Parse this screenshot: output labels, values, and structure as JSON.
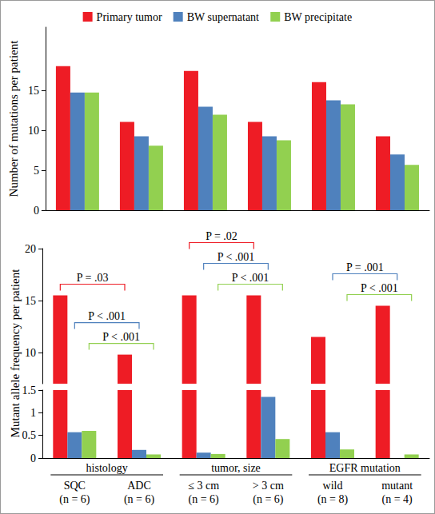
{
  "chart_data": [
    {
      "type": "bar",
      "ylabel": "Number of mutations per patient",
      "categories": [
        "SQC\n(n = 6)",
        "ADC\n(n = 6)",
        "≤ 3 cm\n(n = 6)",
        "> 3 cm\n(n = 6)",
        "wild\n(n = 8)",
        "mutant\n(n = 4)"
      ],
      "series": [
        {
          "name": "Primary tumor",
          "color": "#ee1c25",
          "values": [
            18.1,
            11.1,
            17.5,
            11.1,
            16.1,
            9.3
          ]
        },
        {
          "name": "BW supernatant",
          "color": "#4f81bd",
          "values": [
            14.8,
            9.3,
            13,
            9.3,
            13.8,
            7
          ]
        },
        {
          "name": "BW precipitate",
          "color": "#92d050",
          "values": [
            14.8,
            8.1,
            12,
            8.8,
            13.3,
            5.7
          ]
        }
      ],
      "ylim": [
        0,
        23
      ],
      "yticks": [
        0,
        5,
        10,
        15
      ],
      "grid": false,
      "legend": "top",
      "tick_labels": "y"
    },
    {
      "type": "bar",
      "ylabel": "Mutant allele frequency per patient",
      "categories": [
        "SQC\n(n = 6)",
        "ADC\n(n = 6)",
        "≤ 3 cm\n(n = 6)",
        "> 3 cm\n(n = 6)",
        "wild\n(n = 8)",
        "mutant\n(n = 4)"
      ],
      "groups": [
        {
          "label": "histology",
          "categories": [
            "SQC\n(n = 6)",
            "ADC\n(n = 6)"
          ]
        },
        {
          "label": "tumor, size",
          "categories": [
            "≤ 3 cm\n(n = 6)",
            "> 3 cm\n(n = 6)"
          ]
        },
        {
          "label": "EGFR mutation",
          "categories": [
            "wild\n(n = 8)",
            "mutant\n(n = 4)"
          ]
        }
      ],
      "series": [
        {
          "name": "Primary tumor",
          "color": "#ee1c25",
          "values": [
            15.5,
            9.8,
            15.5,
            15.5,
            11.5,
            14.5
          ]
        },
        {
          "name": "BW supernatant",
          "color": "#4f81bd",
          "values": [
            0.57,
            0.18,
            0.12,
            1.35,
            0.57,
            0
          ]
        },
        {
          "name": "BW precipitate",
          "color": "#92d050",
          "values": [
            0.6,
            0.08,
            0.09,
            0.42,
            0.19,
            0.08
          ]
        }
      ],
      "ylim": [
        0,
        20
      ],
      "yticks": [
        0,
        0.5,
        1,
        1.5,
        10,
        15,
        20
      ],
      "axis_break": [
        1.5,
        7
      ],
      "annotations": [
        {
          "text": "P = .03",
          "series": "Primary tumor",
          "from": "SQC\n(n = 6)",
          "to": "ADC\n(n = 6)"
        },
        {
          "text": "P < .001",
          "series": "BW supernatant",
          "from": "SQC\n(n = 6)",
          "to": "ADC\n(n = 6)"
        },
        {
          "text": "P < .001",
          "series": "BW precipitate",
          "from": "SQC\n(n = 6)",
          "to": "ADC\n(n = 6)"
        },
        {
          "text": "P = .02",
          "series": "Primary tumor",
          "from": "≤ 3 cm\n(n = 6)",
          "to": "> 3 cm\n(n = 6)"
        },
        {
          "text": "P < .001",
          "series": "BW supernatant",
          "from": "≤ 3 cm\n(n = 6)",
          "to": "> 3 cm\n(n = 6)"
        },
        {
          "text": "P < .001",
          "series": "BW precipitate",
          "from": "≤ 3 cm\n(n = 6)",
          "to": "> 3 cm\n(n = 6)"
        },
        {
          "text": "P = .001",
          "series": "BW supernatant",
          "from": "wild\n(n = 8)",
          "to": "mutant\n(n = 4)"
        },
        {
          "text": "P < .001",
          "series": "BW precipitate",
          "from": "wild\n(n = 8)",
          "to": "mutant\n(n = 4)"
        }
      ],
      "grid": false
    }
  ]
}
